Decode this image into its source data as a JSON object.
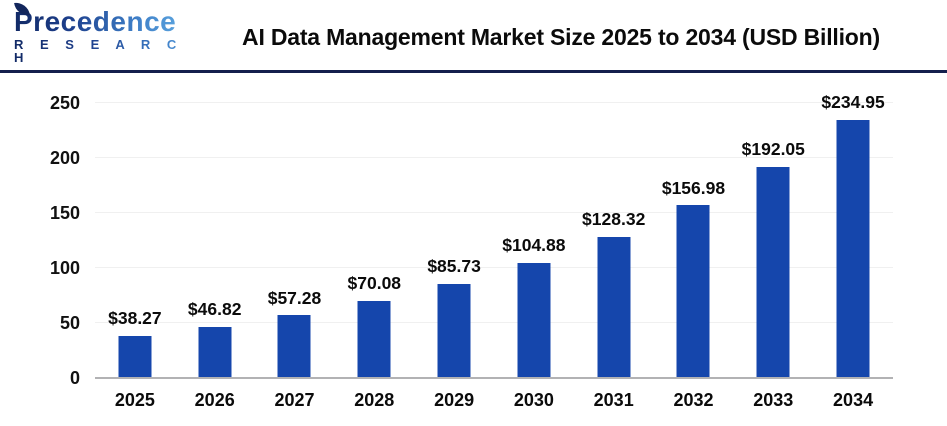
{
  "header": {
    "logo": {
      "brand": "Precedence",
      "sub": "R E S E A R C H"
    },
    "title": "AI Data Management Market Size 2025 to 2034 (USD Billion)"
  },
  "colors": {
    "bar": "#1546ac",
    "divider": "#141f4d",
    "baseline": "#b2b2b4",
    "gridline": "#f0f0f0",
    "logo_dark": "#122a66",
    "logo_light": "#58a0dc",
    "text": "#0b0b0b"
  },
  "chart_data": {
    "type": "bar",
    "title": "AI Data Management Market Size 2025 to 2034 (USD Billion)",
    "categories": [
      "2025",
      "2026",
      "2027",
      "2028",
      "2029",
      "2030",
      "2031",
      "2032",
      "2033",
      "2034"
    ],
    "values": [
      38.27,
      46.82,
      57.28,
      70.08,
      85.73,
      104.88,
      128.32,
      156.98,
      192.05,
      234.95
    ],
    "value_labels": [
      "$38.27",
      "$46.82",
      "$57.28",
      "$70.08",
      "$85.73",
      "$104.88",
      "$128.32",
      "$156.98",
      "$192.05",
      "$234.95"
    ],
    "xlabel": "",
    "ylabel": "",
    "ylim": [
      0,
      250
    ],
    "yticks": [
      0,
      50,
      100,
      150,
      200,
      250
    ],
    "grid": true,
    "legend": false
  }
}
